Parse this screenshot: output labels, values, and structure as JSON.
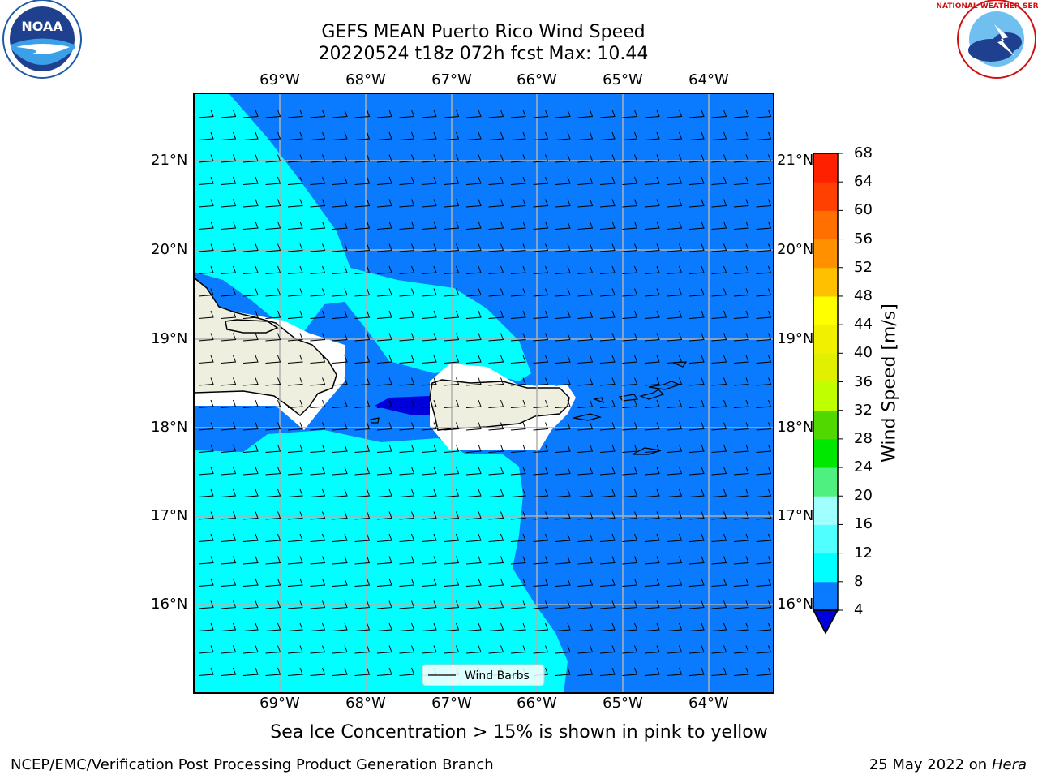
{
  "title": {
    "line1": "GEFS MEAN Puerto Rico Wind Speed",
    "line2": "20220524 t18z 072h fcst   Max: 10.44"
  },
  "map": {
    "lon_labels": [
      "69°W",
      "68°W",
      "67°W",
      "66°W",
      "65°W",
      "64°W"
    ],
    "lat_labels": [
      "21°N",
      "20°N",
      "19°N",
      "18°N",
      "17°N",
      "16°N"
    ],
    "extent": {
      "lon": [
        -70.0,
        -63.25
      ],
      "lat": [
        15.0,
        21.75
      ]
    },
    "colors": {
      "speed_4_8": "#0a7bff",
      "speed_8_12": "#00ffff",
      "speed_below_4": "#0000dd",
      "land": "#efefdf",
      "gridline": "#b0b0b0"
    },
    "legend": {
      "label": "Wind Barbs"
    }
  },
  "colorbar": {
    "label": "Wind Speed [m/s]",
    "ticks": [
      "4",
      "8",
      "12",
      "16",
      "20",
      "24",
      "28",
      "32",
      "36",
      "40",
      "44",
      "48",
      "52",
      "56",
      "60",
      "64",
      "68"
    ],
    "colors": [
      "#0a7bff",
      "#00ffff",
      "#50ffff",
      "#a0ffff",
      "#50f080",
      "#00e800",
      "#50d800",
      "#c0ff00",
      "#e0f000",
      "#f0f000",
      "#ffff00",
      "#ffc000",
      "#ff9000",
      "#ff7000",
      "#ff4000",
      "#ff2000",
      "#ff0000"
    ],
    "extend_min_color": "#0000dd"
  },
  "footnote": "Sea Ice Concentration > 15% is shown in pink to yellow",
  "footer": {
    "left": "NCEP/EMC/Verification Post Processing Product Generation Branch",
    "date": "25 May 2022 on",
    "host": "Hera"
  },
  "logos": {
    "left": "NOAA",
    "right": "NATIONAL WEATHER SERVICE"
  }
}
